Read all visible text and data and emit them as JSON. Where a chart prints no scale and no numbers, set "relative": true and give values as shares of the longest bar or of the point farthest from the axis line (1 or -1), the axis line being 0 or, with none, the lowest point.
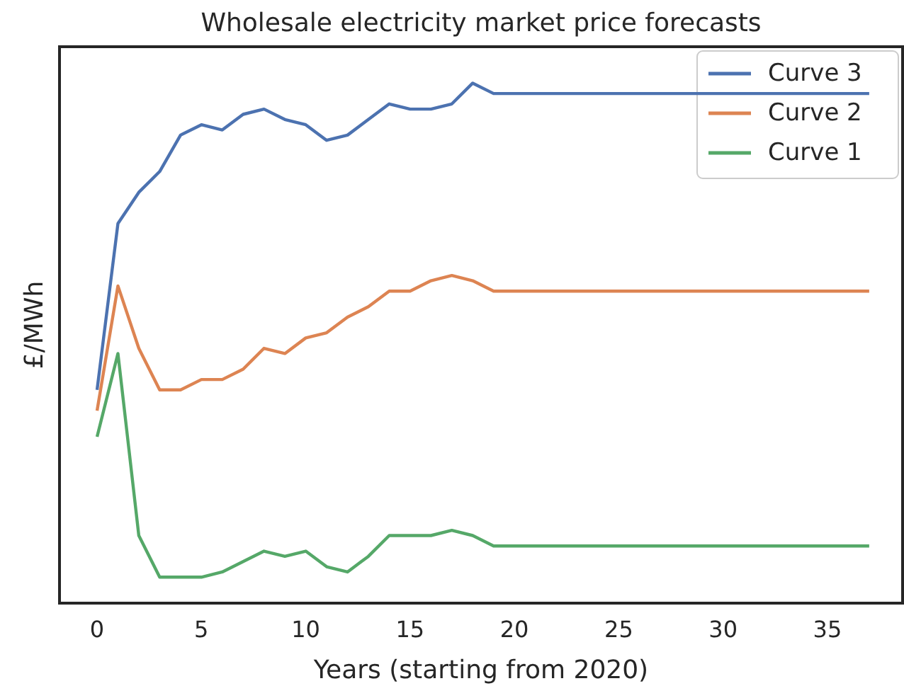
{
  "chart_data": {
    "type": "line",
    "title": "Wholesale electricity market price forecasts",
    "xlabel": "Years (starting from 2020)",
    "ylabel": "£/MWh",
    "relative": true,
    "legend": "top right",
    "grid": false,
    "marker": "none",
    "line_style": "solid",
    "x": [
      0,
      1,
      2,
      3,
      4,
      5,
      6,
      7,
      8,
      9,
      10,
      11,
      12,
      13,
      14,
      15,
      16,
      17,
      18,
      19,
      20,
      21,
      22,
      23,
      24,
      25,
      26,
      27,
      28,
      29,
      30,
      31,
      32,
      33,
      34,
      35,
      36,
      37
    ],
    "xlim": [
      -1.8,
      38.6
    ],
    "xticks": [
      0,
      5,
      10,
      15,
      20,
      25,
      30,
      35
    ],
    "series": [
      {
        "name": "Curve 3",
        "color": "#4c72b0",
        "values": [
          0.41,
          0.73,
          0.79,
          0.83,
          0.9,
          0.92,
          0.91,
          0.94,
          0.95,
          0.93,
          0.92,
          0.89,
          0.9,
          0.93,
          0.96,
          0.95,
          0.95,
          0.96,
          1,
          0.98,
          0.98,
          0.98,
          0.98,
          0.98,
          0.98,
          0.98,
          0.98,
          0.98,
          0.98,
          0.98,
          0.98,
          0.98,
          0.98,
          0.98,
          0.98,
          0.98,
          0.98,
          0.98
        ]
      },
      {
        "name": "Curve 2",
        "color": "#dd8452",
        "values": [
          0.37,
          0.61,
          0.49,
          0.41,
          0.41,
          0.43,
          0.43,
          0.45,
          0.49,
          0.48,
          0.51,
          0.52,
          0.55,
          0.57,
          0.6,
          0.6,
          0.62,
          0.63,
          0.62,
          0.6,
          0.6,
          0.6,
          0.6,
          0.6,
          0.6,
          0.6,
          0.6,
          0.6,
          0.6,
          0.6,
          0.6,
          0.6,
          0.6,
          0.6,
          0.6,
          0.6,
          0.6,
          0.6
        ]
      },
      {
        "name": "Curve 1",
        "color": "#55a868",
        "values": [
          0.32,
          0.48,
          0.13,
          0.05,
          0.05,
          0.05,
          0.06,
          0.08,
          0.1,
          0.09,
          0.1,
          0.07,
          0.06,
          0.09,
          0.13,
          0.13,
          0.13,
          0.14,
          0.13,
          0.11,
          0.11,
          0.11,
          0.11,
          0.11,
          0.11,
          0.11,
          0.11,
          0.11,
          0.11,
          0.11,
          0.11,
          0.11,
          0.11,
          0.11,
          0.11,
          0.11,
          0.11,
          0.11
        ]
      }
    ]
  }
}
